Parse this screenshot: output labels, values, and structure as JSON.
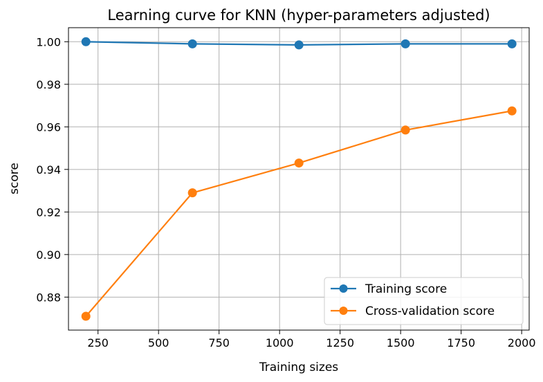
{
  "chart_data": {
    "type": "line",
    "title": "Learning curve for KNN (hyper-parameters adjusted)",
    "xlabel": "Training sizes",
    "ylabel": "score",
    "xlim": [
      128,
      2031
    ],
    "ylim": [
      0.8645,
      1.0066
    ],
    "x": [
      200,
      640,
      1080,
      1520,
      1960
    ],
    "x_ticks": [
      250,
      500,
      750,
      1000,
      1250,
      1500,
      1750,
      2000
    ],
    "x_tick_labels": [
      "250",
      "500",
      "750",
      "1000",
      "1250",
      "1500",
      "1750",
      "2000"
    ],
    "y_ticks": [
      0.88,
      0.9,
      0.92,
      0.94,
      0.96,
      0.98,
      1.0
    ],
    "y_tick_labels": [
      "0.88",
      "0.90",
      "0.92",
      "0.94",
      "0.96",
      "0.98",
      "1.00"
    ],
    "grid": true,
    "legend_position": "lower-right",
    "series": [
      {
        "name": "Training score",
        "color": "#1f77b4",
        "marker": "circle",
        "values": [
          1.0,
          0.999,
          0.9985,
          0.999,
          0.999
        ]
      },
      {
        "name": "Cross-validation score",
        "color": "#ff7f0e",
        "marker": "circle",
        "values": [
          0.871,
          0.929,
          0.943,
          0.9585,
          0.9675
        ]
      }
    ]
  }
}
